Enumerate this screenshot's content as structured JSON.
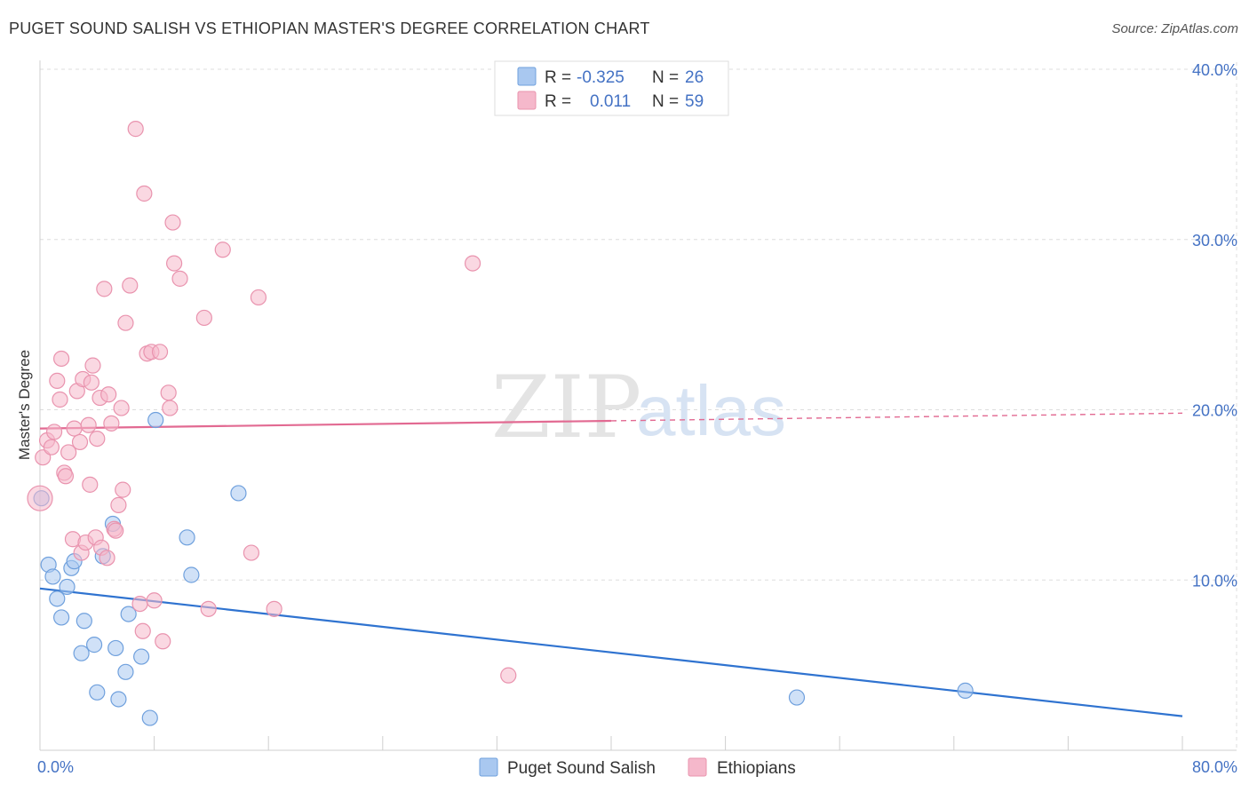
{
  "header": {
    "title": "PUGET SOUND SALISH VS ETHIOPIAN MASTER'S DEGREE CORRELATION CHART",
    "source": "Source: ZipAtlas.com"
  },
  "colors": {
    "blue_fill": "#a9c8f0",
    "blue_stroke": "#6fa0dd",
    "blue_line": "#2f73d0",
    "pink_fill": "#f5b8cb",
    "pink_stroke": "#e993ae",
    "pink_line": "#e26a92",
    "grid": "#dddddd",
    "tick_text": "#4472c4"
  },
  "chart_data": {
    "type": "scatter",
    "title": "PUGET SOUND SALISH VS ETHIOPIAN MASTER'S DEGREE CORRELATION CHART",
    "ylabel": "Master's Degree",
    "xlim": [
      0,
      80
    ],
    "ylim": [
      0,
      40
    ],
    "x_tick_labels": [
      "0.0%",
      "80.0%"
    ],
    "y_ticks": [
      10,
      20,
      30,
      40
    ],
    "y_tick_labels": [
      "10.0%",
      "20.0%",
      "30.0%",
      "40.0%"
    ],
    "grid": true,
    "legend": {
      "position": "top-center",
      "entries": [
        {
          "r_label": "R =",
          "r_value": "-0.325",
          "n_label": "N =",
          "n_value": "26"
        },
        {
          "r_label": "R =",
          "r_value": "0.011",
          "n_label": "N =",
          "n_value": "59"
        }
      ]
    },
    "bottom_legend": [
      "Puget Sound Salish",
      "Ethiopians"
    ],
    "watermark": {
      "zip": "ZIP",
      "atlas": "atlas"
    },
    "series": [
      {
        "name": "Puget Sound Salish",
        "color": "blue",
        "trend": {
          "x0": 0,
          "y0": 9.5,
          "x1": 80,
          "y1": 2.0,
          "dashed_from": null
        },
        "points": [
          [
            0.1,
            14.8
          ],
          [
            0.6,
            10.9
          ],
          [
            0.9,
            10.2
          ],
          [
            1.2,
            8.9
          ],
          [
            1.5,
            7.8
          ],
          [
            1.9,
            9.6
          ],
          [
            2.2,
            10.7
          ],
          [
            2.4,
            11.1
          ],
          [
            2.9,
            5.7
          ],
          [
            3.1,
            7.6
          ],
          [
            3.8,
            6.2
          ],
          [
            4.0,
            3.4
          ],
          [
            4.4,
            11.4
          ],
          [
            5.1,
            13.3
          ],
          [
            5.3,
            6.0
          ],
          [
            5.5,
            3.0
          ],
          [
            6.0,
            4.6
          ],
          [
            6.2,
            8.0
          ],
          [
            7.1,
            5.5
          ],
          [
            7.7,
            1.9
          ],
          [
            8.1,
            19.4
          ],
          [
            10.3,
            12.5
          ],
          [
            10.6,
            10.3
          ],
          [
            13.9,
            15.1
          ],
          [
            53.0,
            3.1
          ],
          [
            64.8,
            3.5
          ]
        ]
      },
      {
        "name": "Ethiopians",
        "color": "pink",
        "trend": {
          "x0": 0,
          "y0": 18.9,
          "x1": 80,
          "y1": 19.8,
          "dashed_from": 40
        },
        "points": [
          [
            0.0,
            14.8
          ],
          [
            0.2,
            17.2
          ],
          [
            0.5,
            18.2
          ],
          [
            0.8,
            17.8
          ],
          [
            1.0,
            18.7
          ],
          [
            1.2,
            21.7
          ],
          [
            1.4,
            20.6
          ],
          [
            1.5,
            23.0
          ],
          [
            1.7,
            16.3
          ],
          [
            1.8,
            16.1
          ],
          [
            2.0,
            17.5
          ],
          [
            2.3,
            12.4
          ],
          [
            2.4,
            18.9
          ],
          [
            2.6,
            21.1
          ],
          [
            2.8,
            18.1
          ],
          [
            2.9,
            11.6
          ],
          [
            3.0,
            21.8
          ],
          [
            3.2,
            12.2
          ],
          [
            3.4,
            19.1
          ],
          [
            3.5,
            15.6
          ],
          [
            3.6,
            21.6
          ],
          [
            3.7,
            22.6
          ],
          [
            3.9,
            12.5
          ],
          [
            4.0,
            18.3
          ],
          [
            4.2,
            20.7
          ],
          [
            4.3,
            11.9
          ],
          [
            4.5,
            27.1
          ],
          [
            4.7,
            11.3
          ],
          [
            4.8,
            20.9
          ],
          [
            5.0,
            19.2
          ],
          [
            5.2,
            13.0
          ],
          [
            5.5,
            14.4
          ],
          [
            5.7,
            20.1
          ],
          [
            5.8,
            15.3
          ],
          [
            6.0,
            25.1
          ],
          [
            6.3,
            27.3
          ],
          [
            6.7,
            36.5
          ],
          [
            7.0,
            8.6
          ],
          [
            7.2,
            7.0
          ],
          [
            7.3,
            32.7
          ],
          [
            7.5,
            23.3
          ],
          [
            7.8,
            23.4
          ],
          [
            8.0,
            8.8
          ],
          [
            8.4,
            23.4
          ],
          [
            8.6,
            6.4
          ],
          [
            9.0,
            21.0
          ],
          [
            9.3,
            31.0
          ],
          [
            9.4,
            28.6
          ],
          [
            9.1,
            20.1
          ],
          [
            9.8,
            27.7
          ],
          [
            11.5,
            25.4
          ],
          [
            11.8,
            8.3
          ],
          [
            12.8,
            29.4
          ],
          [
            14.8,
            11.6
          ],
          [
            15.3,
            26.6
          ],
          [
            16.4,
            8.3
          ],
          [
            30.3,
            28.6
          ],
          [
            32.8,
            4.4
          ],
          [
            5.3,
            12.9
          ]
        ]
      }
    ]
  }
}
